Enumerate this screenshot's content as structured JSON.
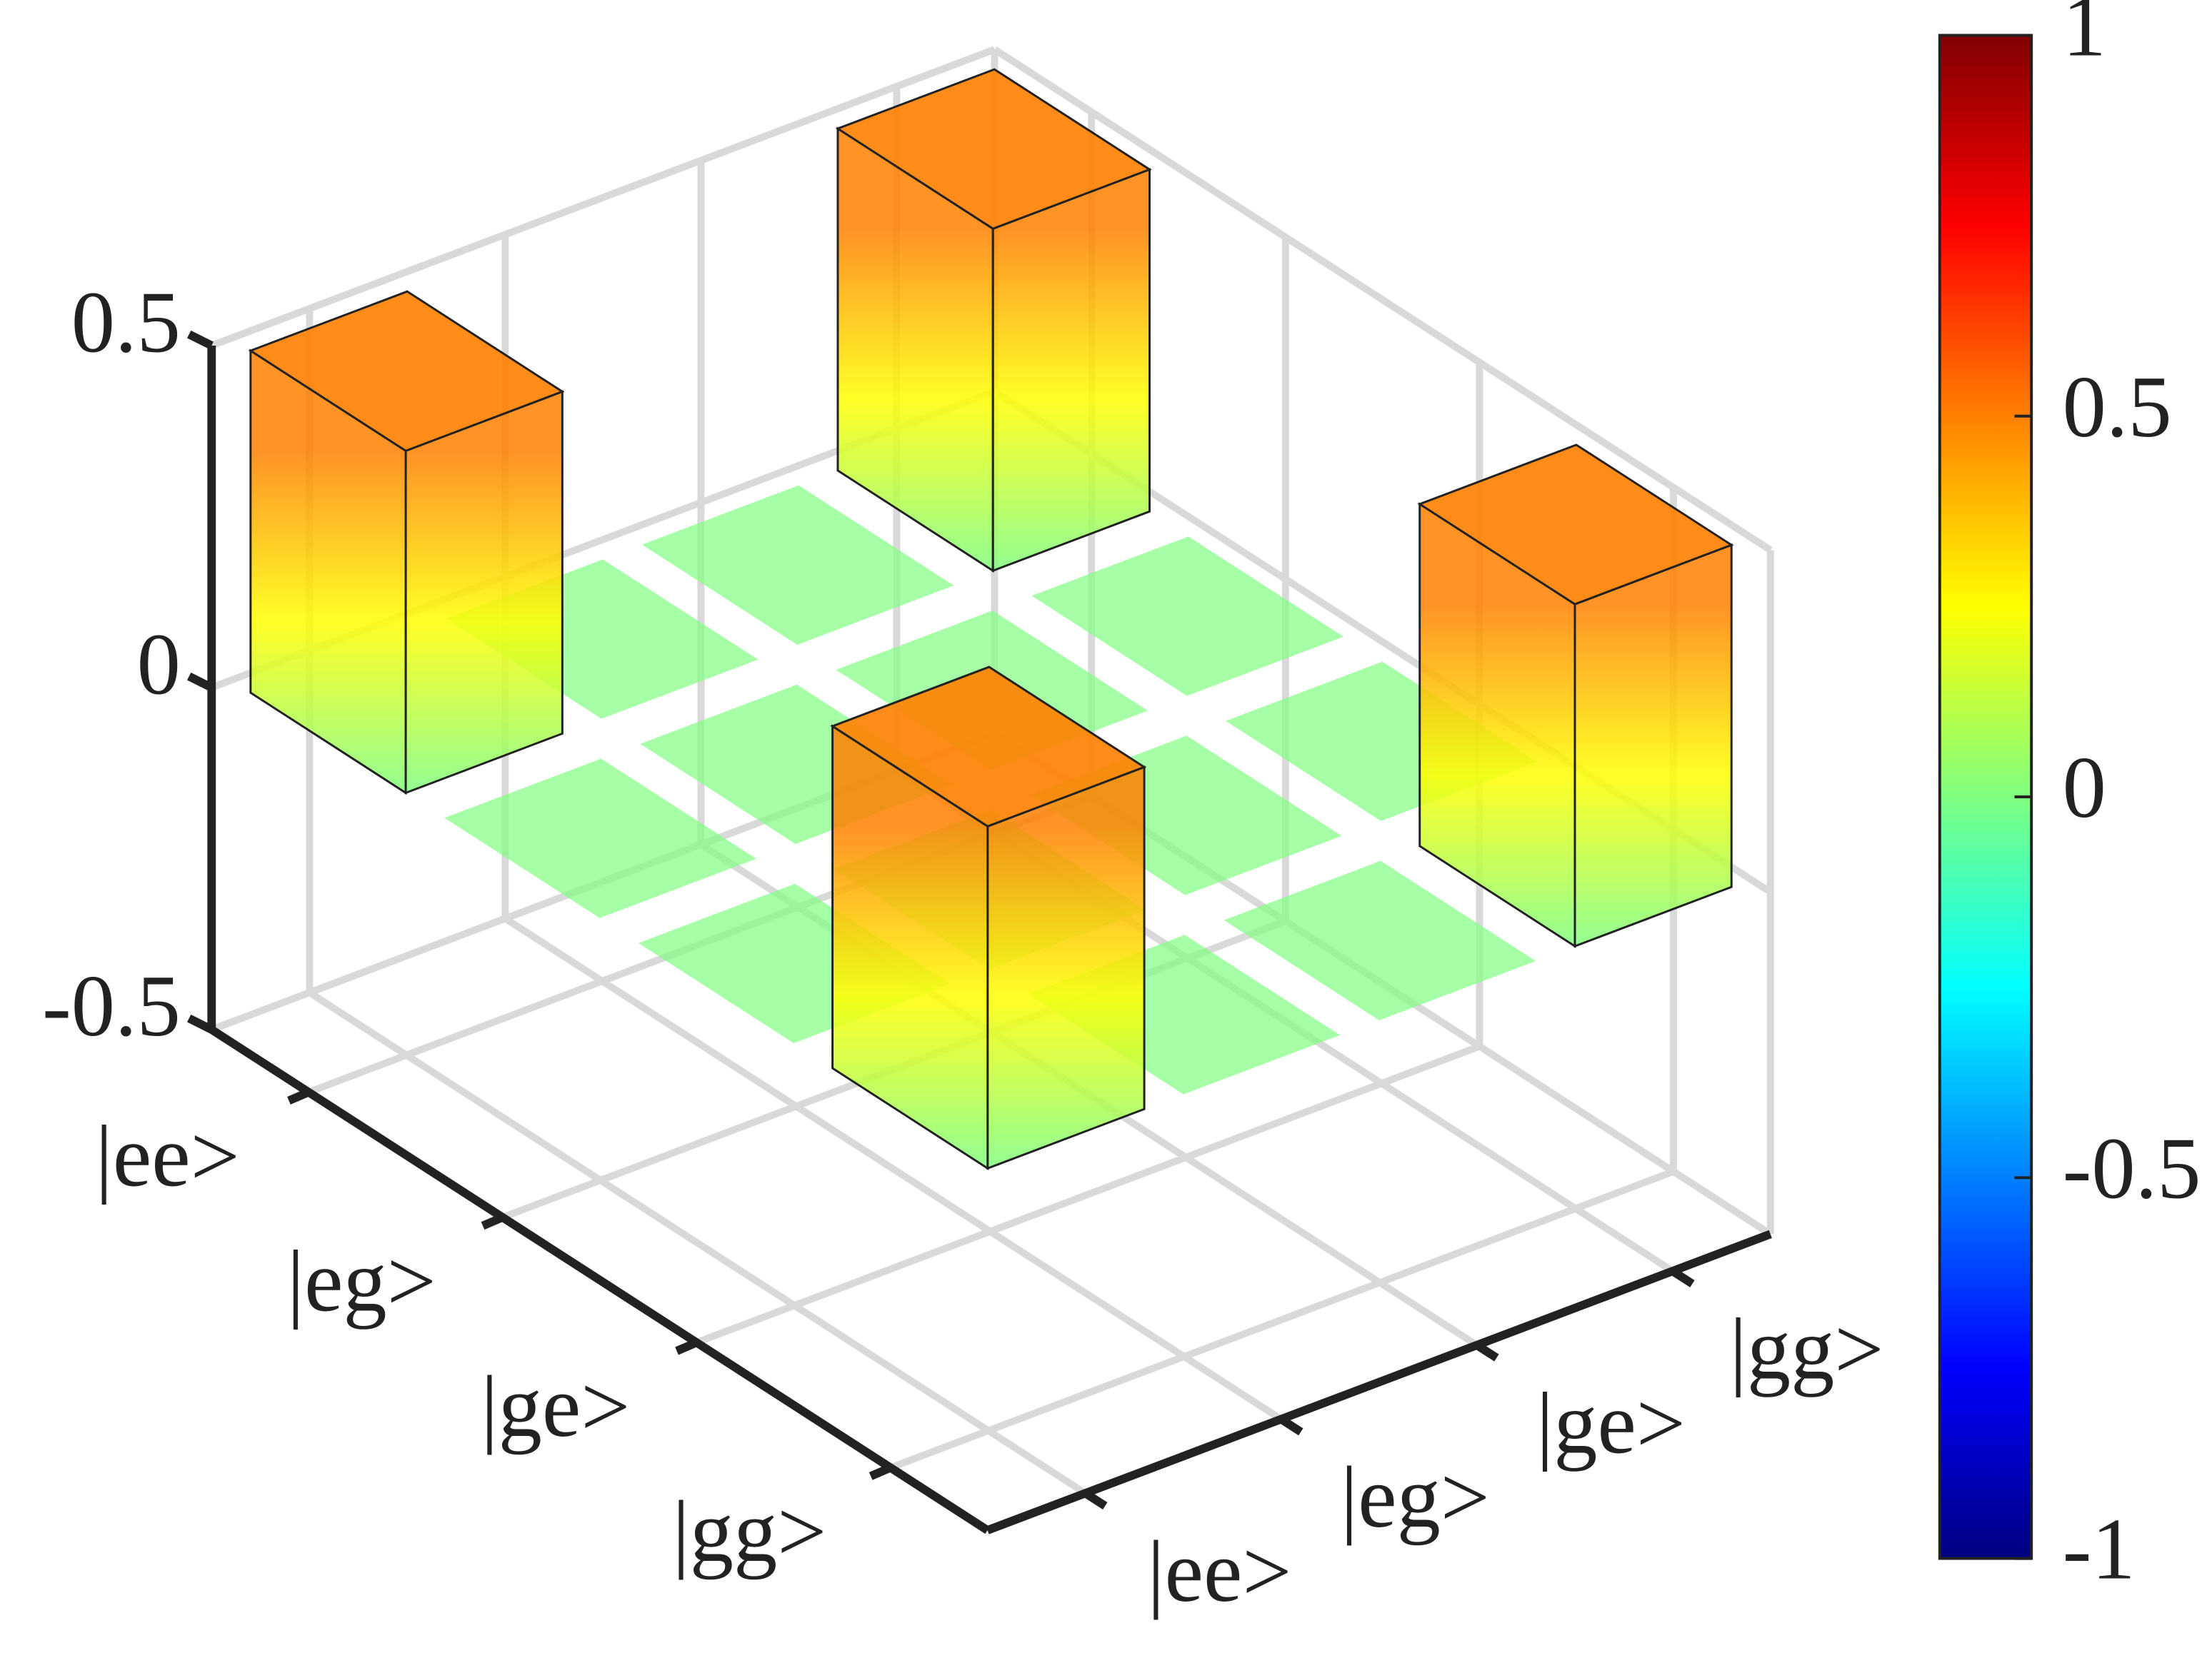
{
  "chart_data": {
    "type": "bar3d",
    "row_labels": [
      "|ee>",
      "|eg>",
      "|ge>",
      "|gg>"
    ],
    "col_labels": [
      "|ee>",
      "|eg>",
      "|ge>",
      "|gg>"
    ],
    "values": [
      [
        0.5,
        0,
        0,
        0.5
      ],
      [
        0,
        0,
        0,
        0
      ],
      [
        0,
        0,
        0,
        0
      ],
      [
        0.5,
        0,
        0,
        0.5
      ]
    ],
    "zlim": [
      -0.5,
      0.5
    ],
    "zticks": [
      -0.5,
      0,
      0.5
    ],
    "colormap": "jet",
    "clim": [
      -1,
      1
    ],
    "cticks": [
      -1,
      -0.5,
      0,
      0.5,
      1
    ],
    "grid": true
  }
}
